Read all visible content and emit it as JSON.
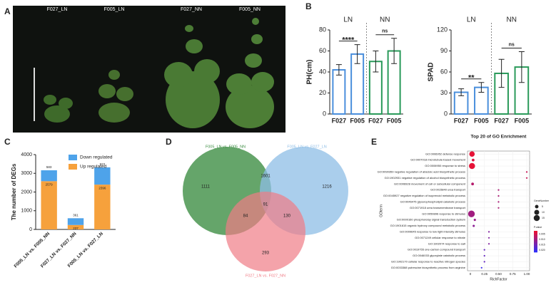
{
  "panel_labels": [
    "A",
    "B",
    "C",
    "D",
    "E"
  ],
  "photo": {
    "labels": [
      "F027_LN",
      "F005_LN",
      "F027_NN",
      "F005_NN"
    ]
  },
  "venn": {
    "sets": [
      "F005_LN vs. F005_NN",
      "F005_LN vs. F027_LN",
      "F027_LN vs. F027_NN"
    ],
    "regions": [
      1111,
      1601,
      1216,
      91,
      84,
      130,
      293
    ]
  },
  "chart_data": [
    {
      "type": "bar",
      "ylabel": "PH(cm)",
      "groups": [
        "LN",
        "NN"
      ],
      "annotations": [
        "****",
        "ns"
      ],
      "categories": [
        "F027",
        "F005",
        "F027",
        "F005"
      ],
      "values": [
        42,
        57,
        50,
        60
      ],
      "errors": [
        5,
        9,
        10,
        12
      ],
      "colors": [
        "#4a8fdc",
        "#4a8fdc",
        "#2a9a5a",
        "#2a9a5a"
      ],
      "ylim": [
        0,
        80
      ],
      "yticks": [
        0,
        20,
        40,
        60,
        80
      ]
    },
    {
      "type": "bar",
      "ylabel": "SPAD",
      "groups": [
        "LN",
        "NN"
      ],
      "annotations": [
        "**",
        "ns"
      ],
      "categories": [
        "F027",
        "F005",
        "F027",
        "F005"
      ],
      "values": [
        31,
        38,
        58,
        67
      ],
      "errors": [
        5,
        7,
        20,
        22
      ],
      "colors": [
        "#4a8fdc",
        "#4a8fdc",
        "#2a9a5a",
        "#2a9a5a"
      ],
      "ylim": [
        0,
        120
      ],
      "yticks": [
        0,
        30,
        60,
        90,
        120
      ]
    },
    {
      "type": "stacked_bar",
      "ylabel": "The number of DEGs",
      "categories": [
        "F005_LN vs. F005_NN",
        "F027_LN vs. F027_NN",
        "F005_LN vs. F027_LN"
      ],
      "series": [
        {
          "name": "Up regulated",
          "color": "#f6a13c",
          "values": [
            2579,
            237,
            2396
          ]
        },
        {
          "name": "Down regulated",
          "color": "#4ea3ea",
          "values": [
            583,
            361,
            923
          ]
        }
      ],
      "legend_order": [
        1,
        0
      ],
      "ylim": [
        0,
        4000
      ],
      "yticks": [
        0,
        1000,
        2000,
        3000,
        4000
      ]
    },
    {
      "type": "dot",
      "title": "Top 20 of GO Enrichment",
      "xlabel": "RichFactor",
      "ylabel": "GOterm",
      "categories": [
        "GO:0006952 defense response",
        "GO:0007018 microtubule-based movement",
        "GO:0006950 response to stress",
        "GO:0090359 negative regulation of abscisic acid biosynthetic process",
        "GO:1902931 negative regulation of alcohol biosynthetic process",
        "GO:0006928 movement of cell or subcellular component",
        "GO:0015840 urea transport",
        "GO:0045927 negative regulation of isoprenoid metabolic process",
        "GO:0046475 glycerophospholipid catabolic process",
        "GO:0071918 urea transmembrane transport",
        "GO:0050896 response to stimulus",
        "GO:0000160 phosphorelay signal transduction system",
        "GO:1901615 organic hydroxy compound metabolic process",
        "GO:0009645 response to low light intensity stimulus",
        "GO:0071249 cellular response to nitrate",
        "GO:1902074 response to salt",
        "GO:0019755 one-carbon compound transport",
        "GO:0046033 glyoxylate catabolic process",
        "GO:1902170 cellular response to reactive nitrogen species",
        "GO:0033388 putrescine biosynthetic process from arginine"
      ],
      "x": [
        0.03,
        0.05,
        0.03,
        1.0,
        1.0,
        0.04,
        0.5,
        0.5,
        0.5,
        0.5,
        0.02,
        0.08,
        0.06,
        0.33,
        0.33,
        0.33,
        0.25,
        0.25,
        0.25,
        0.2
      ],
      "sizes": [
        12,
        3,
        15,
        1,
        1,
        3,
        1,
        1,
        1,
        1,
        18,
        2,
        2,
        1,
        1,
        1,
        1,
        1,
        1,
        1
      ],
      "pvalues": [
        0.003,
        0.004,
        0.003,
        0.006,
        0.006,
        0.008,
        0.009,
        0.009,
        0.009,
        0.009,
        0.01,
        0.011,
        0.012,
        0.013,
        0.013,
        0.013,
        0.016,
        0.016,
        0.016,
        0.02
      ],
      "xlim": [
        -0.05,
        1.05
      ],
      "xticks": [
        0,
        0.25,
        {
          "value": 0.5,
          "label": "0.50"
        },
        0.75,
        {
          "value": 1,
          "label": "1.00"
        }
      ],
      "size_title": "GeneNumber",
      "size_legend": [
        5,
        10,
        15
      ],
      "color_title": "P.value",
      "clim": [
        0.002,
        0.022
      ],
      "colors": [
        "#f0102c",
        "#2a30ff"
      ],
      "cticks": [
        {
          "value": 0.02,
          "label": "0.020"
        },
        0.015,
        {
          "value": 0.01,
          "label": "0.010"
        },
        0.005
      ]
    }
  ]
}
